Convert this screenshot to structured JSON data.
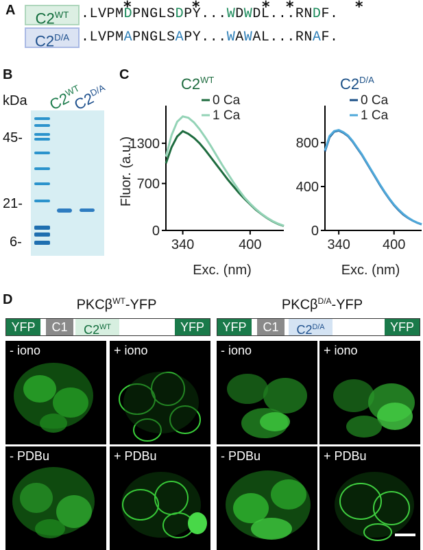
{
  "panel_letters": {
    "a": "A",
    "b": "B",
    "c": "C",
    "d": "D"
  },
  "panel_a": {
    "wt_label_base": "C2",
    "wt_label_sup": "WT",
    "da_label_base": "C2",
    "da_label_sup": "D/A",
    "wt_sequence": ".LVPMDPNGLSDPY...WDWDL...RNDF.",
    "da_sequence": ".LVPMAPNGLSAPY...WAWAL...RNAF.",
    "stars": [
      "*",
      "*",
      "*",
      "*",
      "*"
    ]
  },
  "panel_b": {
    "unit": "kDa",
    "markers": [
      "45-",
      "21-",
      "6-"
    ],
    "lane1_base": "C2",
    "lane1_sup": "WT",
    "lane2_base": "C2",
    "lane2_sup": "D/A"
  },
  "panel_c": {
    "ylabel": "Fluor. (a.u.)",
    "xlabel": "Exc. (nm)",
    "colors": {
      "wt0": "#1d6b3e",
      "wt1": "#93d3b6",
      "da0": "#1a4f86",
      "da1": "#4ea8da"
    }
  },
  "chart_data": [
    {
      "type": "line",
      "title": "C2WT",
      "xlabel": "Exc. (nm)",
      "ylabel": "Fluor. (a.u.)",
      "xlim": [
        325,
        430
      ],
      "ylim": [
        0,
        1800
      ],
      "xticks": [
        340,
        400
      ],
      "yticks": [
        0,
        700,
        1300
      ],
      "x": [
        325,
        330,
        335,
        340,
        345,
        350,
        355,
        360,
        365,
        370,
        375,
        380,
        385,
        390,
        395,
        400,
        405,
        410,
        415,
        420,
        425,
        430
      ],
      "series": [
        {
          "name": "0 Ca",
          "values": [
            1000,
            1240,
            1400,
            1480,
            1440,
            1380,
            1300,
            1200,
            1090,
            980,
            870,
            760,
            660,
            560,
            470,
            390,
            310,
            245,
            185,
            135,
            95,
            65
          ]
        },
        {
          "name": "1 Ca",
          "values": [
            1100,
            1420,
            1620,
            1700,
            1680,
            1610,
            1510,
            1390,
            1260,
            1120,
            980,
            850,
            720,
            600,
            490,
            400,
            320,
            250,
            190,
            140,
            100,
            70
          ]
        }
      ],
      "legend": "top-right"
    },
    {
      "type": "line",
      "title": "C2D/A",
      "xlabel": "Exc. (nm)",
      "ylabel": "",
      "xlim": [
        325,
        430
      ],
      "ylim": [
        0,
        1100
      ],
      "xticks": [
        340,
        400
      ],
      "yticks": [
        0,
        400,
        800
      ],
      "x": [
        325,
        330,
        335,
        340,
        345,
        350,
        355,
        360,
        365,
        370,
        375,
        380,
        385,
        390,
        395,
        400,
        405,
        410,
        415,
        420,
        425,
        430
      ],
      "series": [
        {
          "name": "0 Ca",
          "values": [
            720,
            850,
            900,
            910,
            890,
            860,
            810,
            750,
            690,
            620,
            550,
            480,
            410,
            345,
            285,
            230,
            185,
            145,
            115,
            90,
            70,
            55
          ]
        },
        {
          "name": "1 Ca",
          "values": [
            730,
            860,
            905,
            915,
            895,
            865,
            815,
            755,
            695,
            625,
            555,
            485,
            415,
            350,
            290,
            235,
            190,
            150,
            118,
            92,
            72,
            57
          ]
        }
      ],
      "legend": "top-right"
    }
  ],
  "panel_d": {
    "wt_title_pre": "PKCβ",
    "wt_title_sup": "WT",
    "wt_title_post": "-YFP",
    "da_title_pre": "PKCβ",
    "da_title_sup": "D/A",
    "da_title_post": "-YFP",
    "yfp": "YFP",
    "c1": "C1",
    "c2_wt_base": "C2",
    "c2_wt_sup": "WT",
    "c2_da_base": "C2",
    "c2_da_sup": "D/A",
    "images": [
      "- iono",
      "+ iono",
      "- iono",
      "+ iono",
      "- PDBu",
      "+ PDBu",
      "- PDBu",
      "+ PDBu"
    ]
  }
}
